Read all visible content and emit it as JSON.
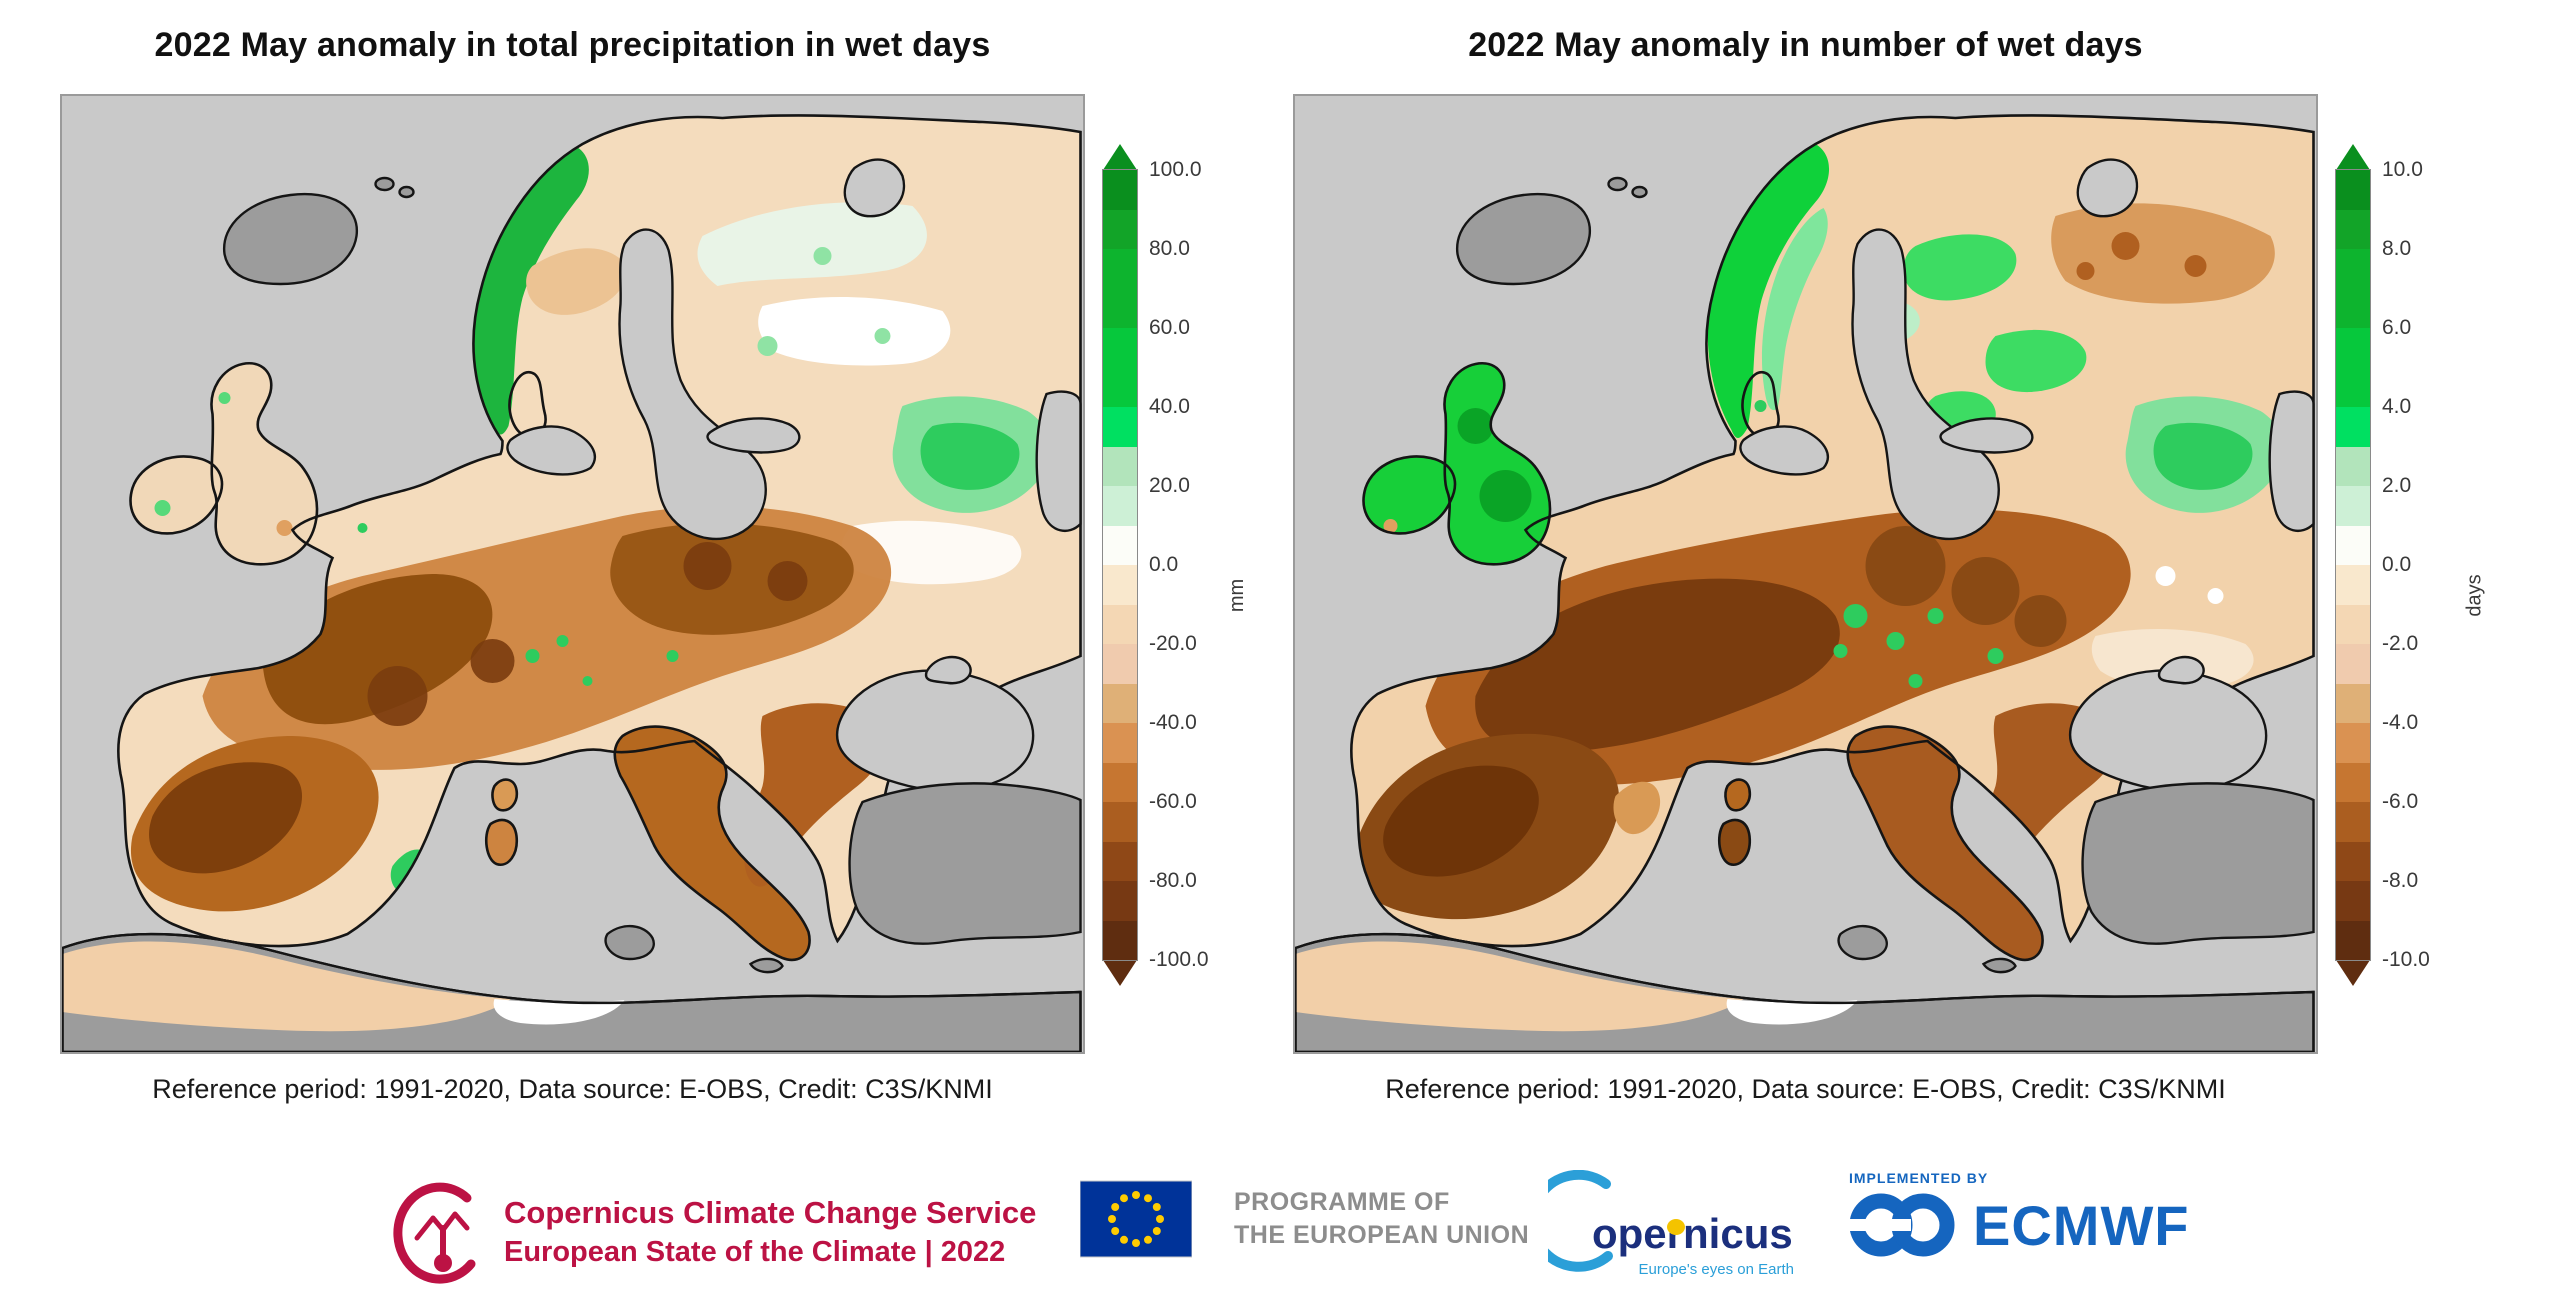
{
  "figure": {
    "background": "#ffffff",
    "panels": [
      {
        "title": "2022 May anomaly in total precipitation in wet days",
        "caption": "Reference period: 1991-2020, Data source: E-OBS, Credit: C3S/KNMI",
        "colorbar": {
          "unit": "mm",
          "min": -100,
          "max": 100,
          "ticks": [
            "100.0",
            "80.0",
            "60.0",
            "40.0",
            "20.0",
            "0.0",
            "-20.0",
            "-40.0",
            "-60.0",
            "-80.0",
            "-100.0"
          ]
        }
      },
      {
        "title": "2022 May anomaly in number of wet days",
        "caption": "Reference period: 1991-2020, Data source: E-OBS, Credit: C3S/KNMI",
        "colorbar": {
          "unit": "days",
          "min": -10,
          "max": 10,
          "ticks": [
            "10.0",
            "8.0",
            "6.0",
            "4.0",
            "2.0",
            "0.0",
            "-2.0",
            "-4.0",
            "-6.0",
            "-8.0",
            "-10.0"
          ]
        }
      }
    ],
    "colorbar_stops_top_to_bottom": [
      "#0a8f1e",
      "#12a428",
      "#0db42e",
      "#0db42e",
      "#06c83c",
      "#06c83c",
      "#00e061",
      "#b2e4bb",
      "#cdf0d6",
      "#fcfdf8",
      "#f9e8cd",
      "#f4d7b4",
      "#f0cbae",
      "#dfb077",
      "#da9252",
      "#c67631",
      "#ab5e20",
      "#8f4817",
      "#773913",
      "#5f2d10"
    ],
    "map_colors": {
      "sea": "#c9c9c9",
      "no_data_land": "#9c9c9c",
      "coastline": "#151515",
      "positive_anomaly": "green shades",
      "negative_anomaly": "brown shades"
    }
  },
  "chart_data": [
    {
      "type": "heatmap",
      "subtype": "choropleth-map",
      "region": "Europe",
      "title": "2022 May anomaly in total precipitation in wet days",
      "ylabel": "mm",
      "scale_ticks": [
        100.0,
        80.0,
        60.0,
        40.0,
        20.0,
        0.0,
        -20.0,
        -40.0,
        -60.0,
        -80.0,
        -100.0
      ],
      "legend_position": "right",
      "qualitative_reading": "Strong negative anomalies (browns, -40 to -100 mm) over Iberia, France, the Alps, central Europe and the Balkans; positive anomalies (greens, +20 to +100 mm) along the Norwegian coast, parts of north-eastern Europe, south-east Spain and east of the map domain; near-zero (white/tan) over eastern Europe and north Africa fringe."
    },
    {
      "type": "heatmap",
      "subtype": "choropleth-map",
      "region": "Europe",
      "title": "2022 May anomaly in number of wet days",
      "ylabel": "days",
      "scale_ticks": [
        10.0,
        8.0,
        6.0,
        4.0,
        2.0,
        0.0,
        -2.0,
        -4.0,
        -6.0,
        -8.0,
        -10.0
      ],
      "legend_position": "right",
      "qualitative_reading": "Strongly positive anomalies (bright green, +4 to +10 days) over the UK, Ireland and coastal Norway and patches of Fennoscandia/Baltic; strong negative anomalies (dark brown, -4 to -10 days) over Iberia, France, central Europe and the Carpathians; mixed small green patches over eastern and south-eastern Europe."
    }
  ],
  "footer": {
    "c3s": {
      "line1": "Copernicus Climate Change Service",
      "line2": "European State of the Climate | 2022",
      "color": "#bc1244"
    },
    "eu": {
      "text_line1": "PROGRAMME OF",
      "text_line2": "THE EUROPEAN UNION",
      "flag_blue": "#003399",
      "star_yellow": "#ffcc00"
    },
    "copernicus": {
      "name": "opernicus",
      "tagline": "Europe's eyes on Earth",
      "color": "#1b2f7d"
    },
    "ecmwf": {
      "implemented_by": "IMPLEMENTED BY",
      "name": "ECMWF",
      "color": "#1565bf"
    }
  }
}
